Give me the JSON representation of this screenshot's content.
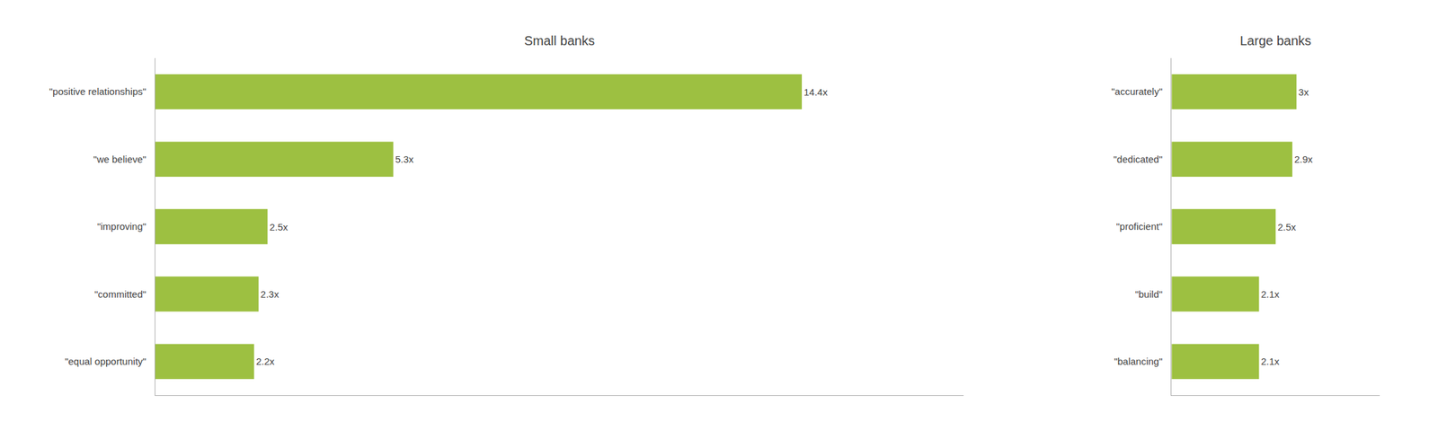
{
  "chart_data": [
    {
      "type": "bar",
      "orientation": "horizontal",
      "title": "Small banks",
      "categories": [
        "\"positive relationships\"",
        "\"we believe\"",
        "\"improving\"",
        "\"committed\"",
        "\"equal opportunity\""
      ],
      "values": [
        14.4,
        5.3,
        2.5,
        2.3,
        2.2
      ],
      "value_labels": [
        "14.4x",
        "5.3x",
        "2.5x",
        "2.3x",
        "2.2x"
      ],
      "data_labels": true,
      "xlim": [
        0,
        18
      ],
      "color": "#9dc041",
      "grid": false,
      "tick_labels": "y"
    },
    {
      "type": "bar",
      "orientation": "horizontal",
      "title": "Large banks",
      "categories": [
        "\"accurately\"",
        "\"dedicated\"",
        "\"proficient\"",
        "\"build\"",
        "\"balancing\""
      ],
      "values": [
        3.0,
        2.9,
        2.5,
        2.1,
        2.1
      ],
      "value_labels": [
        "3x",
        "2.9x",
        "2.5x",
        "2.1x",
        "2.1x"
      ],
      "data_labels": true,
      "xlim": [
        0,
        5
      ],
      "color": "#9dc041",
      "grid": false,
      "tick_labels": "y"
    }
  ]
}
